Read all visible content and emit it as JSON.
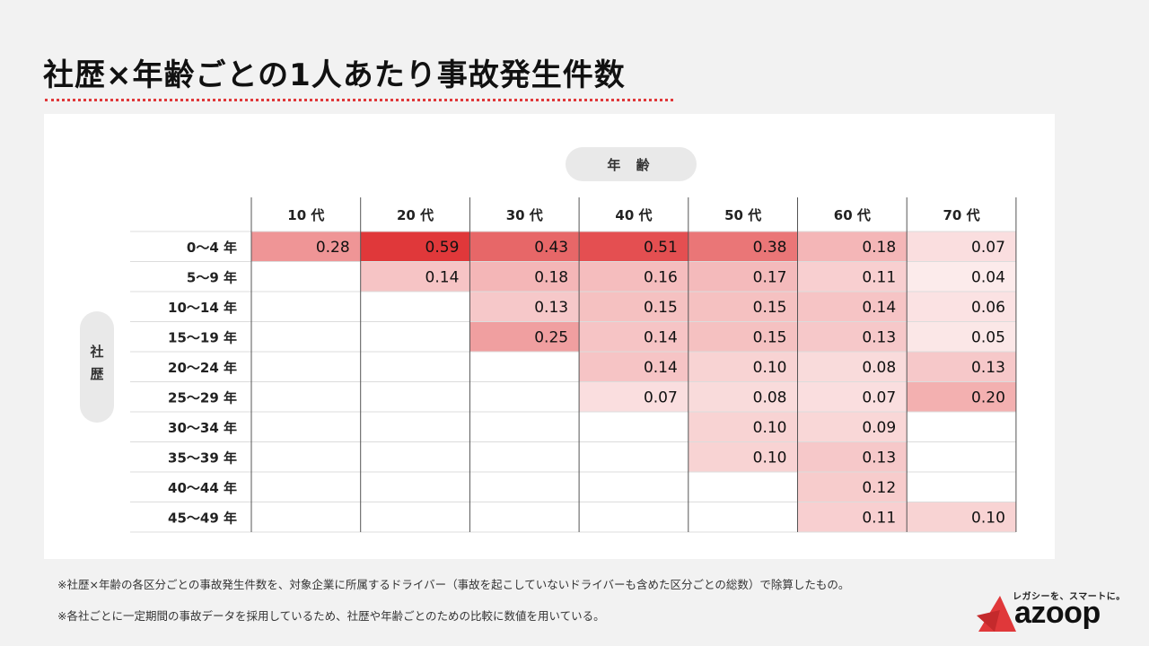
{
  "page": {
    "title": "社歴×年齢ごとの1人あたり事故発生件数",
    "age_label": "年 齢",
    "tenure_label": "社歴",
    "footnote1": "※社歴×年齢の各区分ごとの事故発生件数を、対象企業に所属するドライバー（事故を起こしていないドライバーも含めた区分ごとの総数）で除算したもの。",
    "footnote2": "※各社ごとに一定期間の事故データを採用しているため、社歴や年齢ごとのための比較に数値を用いている。",
    "logo_tagline": "レガシーを、スマートに。",
    "logo_word": "azoop",
    "accent_color": "#e0383a"
  },
  "chart_data": {
    "type": "heatmap",
    "title": "社歴×年齢ごとの1人あたり事故発生件数",
    "xlabel": "年 齢",
    "ylabel": "社歴",
    "columns": [
      "10 代",
      "20 代",
      "30 代",
      "40 代",
      "50 代",
      "60 代",
      "70 代"
    ],
    "rows": [
      "0〜4 年",
      "5〜9 年",
      "10〜14 年",
      "15〜19 年",
      "20〜24 年",
      "25〜29 年",
      "30〜34 年",
      "35〜39 年",
      "40〜44 年",
      "45〜49 年"
    ],
    "values": [
      [
        0.28,
        0.59,
        0.43,
        0.51,
        0.38,
        0.18,
        0.07
      ],
      [
        null,
        0.14,
        0.18,
        0.16,
        0.17,
        0.11,
        0.04
      ],
      [
        null,
        null,
        0.13,
        0.15,
        0.15,
        0.14,
        0.06
      ],
      [
        null,
        null,
        0.25,
        0.14,
        0.15,
        0.13,
        0.05
      ],
      [
        null,
        null,
        null,
        0.14,
        0.1,
        0.08,
        0.13
      ],
      [
        null,
        null,
        null,
        0.07,
        0.08,
        0.07,
        0.2
      ],
      [
        null,
        null,
        null,
        null,
        0.1,
        0.09,
        null
      ],
      [
        null,
        null,
        null,
        null,
        0.1,
        0.13,
        null
      ],
      [
        null,
        null,
        null,
        null,
        null,
        0.12,
        null
      ],
      [
        null,
        null,
        null,
        null,
        null,
        0.11,
        0.1
      ]
    ],
    "color_high": "#e0383a",
    "color_low": "#ffffff"
  }
}
